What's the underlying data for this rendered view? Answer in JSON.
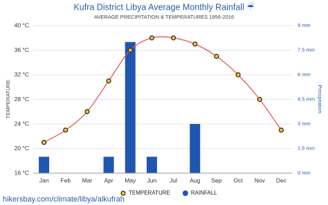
{
  "chart_data": {
    "type": "combo",
    "title": "Kufra District Libya Average Monthly Rainfall ☔",
    "subtitle": "AVERAGE PRECIPITATION & TEMPERATURES 1956-2016",
    "y_label": "TEMPERATURE",
    "y2_label": "Precipitation",
    "categories": [
      "Jan",
      "Feb",
      "Mar",
      "Apr",
      "May",
      "Jun",
      "Jul",
      "Aug",
      "Sep",
      "Oct",
      "Nov",
      "Dec"
    ],
    "series": [
      {
        "name": "TEMPERATURE",
        "type": "line",
        "axis": "y",
        "color": "#e05a4f",
        "marker_color": "#f2c12e",
        "values": [
          21,
          23,
          26,
          31,
          36,
          38,
          38,
          37,
          35,
          32,
          28,
          23
        ]
      },
      {
        "name": "RAINFALL",
        "type": "bar",
        "axis": "y2",
        "color": "#1f57b0",
        "values": [
          1,
          0,
          0,
          1,
          8,
          1,
          0,
          3,
          0,
          0,
          0,
          0
        ]
      }
    ],
    "ylim": [
      16,
      40
    ],
    "yticks": [
      {
        "value": 16,
        "label": "16 °C"
      },
      {
        "value": 20,
        "label": "20 °C"
      },
      {
        "value": 24,
        "label": "24 °C"
      },
      {
        "value": 28,
        "label": "28 °C"
      },
      {
        "value": 32,
        "label": "32 °C"
      },
      {
        "value": 36,
        "label": "36 °C"
      },
      {
        "value": 40,
        "label": "40 °C"
      }
    ],
    "y2lim": [
      0,
      9
    ],
    "y2ticks": [
      {
        "value": 0,
        "label": "0 mm"
      },
      {
        "value": 1.5,
        "label": "1.5 mm"
      },
      {
        "value": 3,
        "label": "3 mm"
      },
      {
        "value": 4.5,
        "label": "4.5 mm"
      },
      {
        "value": 6,
        "label": "6 mm"
      },
      {
        "value": 7.5,
        "label": "7.5 mm"
      },
      {
        "value": 9,
        "label": "9 mm"
      }
    ],
    "grid": true,
    "legend": "bottom",
    "source": "hikersbay.com/climate/libya/alkufrah"
  }
}
